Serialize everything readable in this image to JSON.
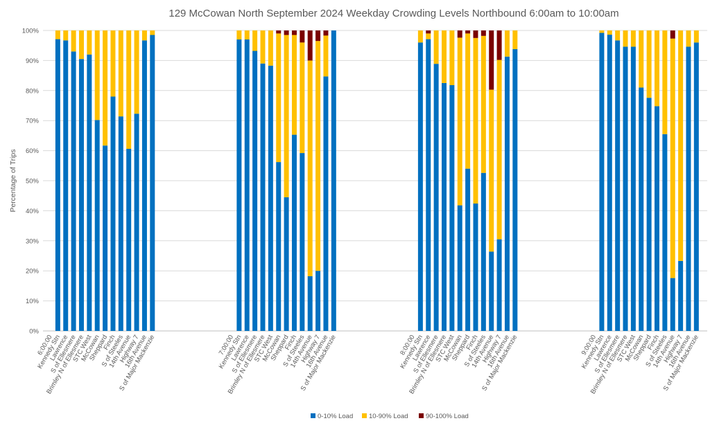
{
  "chart_data": {
    "type": "bar",
    "stacked": true,
    "title": "129 McCowan North September 2024  Weekday Crowding Levels Northbound 6:00am to 10:00am",
    "xlabel": "",
    "ylabel": "Percentage of Trips",
    "ylim": [
      0,
      100
    ],
    "yticks": [
      "0%",
      "10%",
      "20%",
      "30%",
      "40%",
      "50%",
      "60%",
      "70%",
      "80%",
      "90%",
      "100%"
    ],
    "grid": true,
    "legend_position": "bottom",
    "series_names": [
      "0-10% Load",
      "10-90% Load",
      "90-100% Load"
    ],
    "colors": [
      "#0070C0",
      "#FFC000",
      "#7B0000"
    ],
    "stops": [
      "Kennedy Stn",
      "Lawrence",
      "S of Ellesmere",
      "Brimley N of Ellesmere",
      "STC West",
      "McCowan",
      "Sheppard",
      "Finch",
      "S of Steeles",
      "14th Avenue",
      "Highway 7",
      "16th Avenue",
      "S of Major Mackenzie"
    ],
    "groups": [
      {
        "label": "6:00:00",
        "series": [
          [
            97.1,
            96.7,
            93,
            90.5,
            92,
            70.2,
            61.7,
            78,
            71.4,
            60.6,
            72.3,
            96.7,
            98.5
          ],
          [
            2.9,
            3.3,
            7,
            9.5,
            8,
            29.8,
            38.3,
            22,
            28.6,
            39.4,
            27.7,
            3.3,
            1.5
          ],
          [
            0,
            0,
            0,
            0,
            0,
            0,
            0,
            0,
            0,
            0,
            0,
            0,
            0
          ]
        ]
      },
      {
        "label": "7:00:00",
        "series": [
          [
            97,
            97,
            93.2,
            89,
            88.3,
            56.2,
            44.5,
            65.3,
            59.2,
            18.2,
            20,
            84.7,
            100
          ],
          [
            3,
            3,
            6.8,
            11,
            11.7,
            42.8,
            54,
            33.2,
            36.8,
            71.8,
            76.5,
            13.6,
            0
          ],
          [
            0,
            0,
            0,
            0,
            0,
            1,
            1.5,
            1.5,
            4,
            10,
            3.5,
            1.7,
            0
          ]
        ]
      },
      {
        "label": "8:00:00",
        "series": [
          [
            96,
            97.1,
            88.9,
            82.5,
            81.8,
            41.8,
            54,
            42.4,
            52.6,
            26.4,
            30.5,
            91.3,
            93.8
          ],
          [
            4,
            1.9,
            11.1,
            17.5,
            18.2,
            55.8,
            45,
            55.1,
            45.6,
            53.9,
            59.7,
            8.7,
            6.2
          ],
          [
            0,
            1,
            0,
            0,
            0,
            2.4,
            1,
            2.5,
            1.8,
            19.7,
            9.8,
            0,
            0
          ]
        ]
      },
      {
        "label": "9:00:00",
        "series": [
          [
            99.2,
            98.6,
            96.7,
            94.6,
            94.6,
            81,
            77.6,
            74.8,
            65.5,
            17.6,
            23.3,
            94.6,
            96
          ],
          [
            0.8,
            1.4,
            3.3,
            5.4,
            5.4,
            19,
            22.4,
            25.2,
            34.5,
            79.7,
            76.7,
            5.4,
            4
          ],
          [
            0,
            0,
            0,
            0,
            0,
            0,
            0,
            0,
            0,
            2.7,
            0,
            0,
            0
          ]
        ]
      }
    ]
  }
}
